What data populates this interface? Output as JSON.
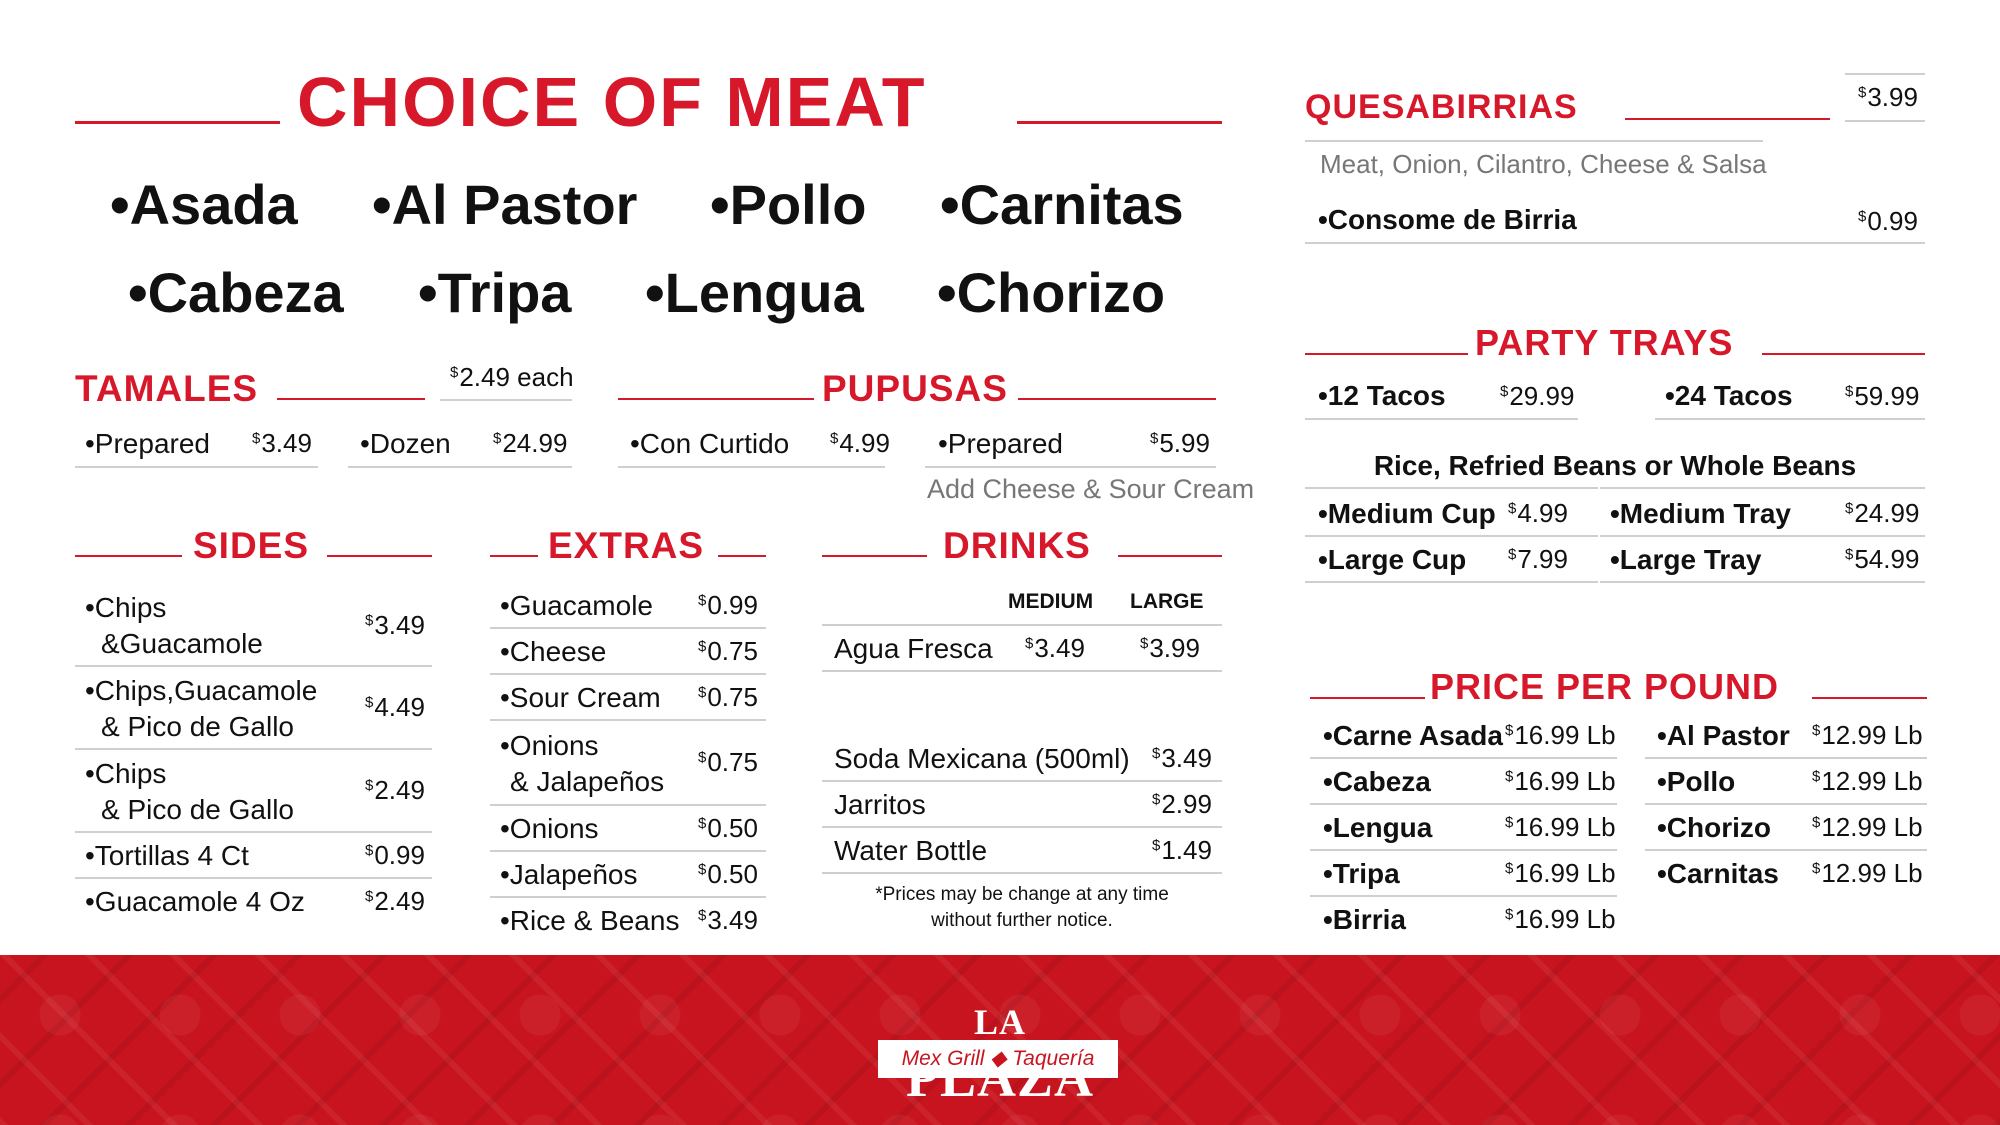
{
  "choice_of_meat": {
    "title": "CHOICE OF MEAT",
    "row1": [
      "•Asada",
      "•Al Pastor",
      "•Pollo",
      "•Carnitas"
    ],
    "row2": [
      "•Cabeza",
      "•Tripa",
      "•Lengua",
      "•Chorizo"
    ]
  },
  "tamales": {
    "title": "TAMALES",
    "each_price": "2.49 each",
    "items": [
      {
        "name": "•Prepared",
        "price": "3.49"
      },
      {
        "name": "•Dozen",
        "price": "24.99"
      }
    ]
  },
  "pupusas": {
    "title": "PUPUSAS",
    "items": [
      {
        "name": "•Con Curtido",
        "price": "4.99"
      },
      {
        "name": "•Prepared",
        "price": "5.99"
      }
    ],
    "note": "Add Cheese & Sour Cream"
  },
  "sides": {
    "title": "SIDES",
    "items": [
      {
        "line1": "•Chips",
        "line2": "&Guacamole",
        "price": "3.49"
      },
      {
        "line1": "•Chips,Guacamole",
        "line2": "& Pico de Gallo",
        "price": "4.49"
      },
      {
        "line1": "•Chips",
        "line2": "& Pico de Gallo",
        "price": "2.49"
      },
      {
        "line1": "•Tortillas 4 Ct",
        "line2": "",
        "price": "0.99"
      },
      {
        "line1": "•Guacamole 4 Oz",
        "line2": "",
        "price": "2.49"
      }
    ]
  },
  "extras": {
    "title": "EXTRAS",
    "items": [
      {
        "line1": "•Guacamole",
        "line2": "",
        "price": "0.99"
      },
      {
        "line1": "•Cheese",
        "line2": "",
        "price": "0.75"
      },
      {
        "line1": "•Sour Cream",
        "line2": "",
        "price": "0.75"
      },
      {
        "line1": "•Onions",
        "line2": "& Jalapeños",
        "price": "0.75"
      },
      {
        "line1": "•Onions",
        "line2": "",
        "price": "0.50"
      },
      {
        "line1": "•Jalapeños",
        "line2": "",
        "price": "0.50"
      },
      {
        "line1": "•Rice & Beans",
        "line2": "",
        "price": "3.49"
      }
    ]
  },
  "drinks": {
    "title": "DRINKS",
    "col_medium": "MEDIUM",
    "col_large": "LARGE",
    "fresca": {
      "name": "Agua Fresca",
      "medium": "3.49",
      "large": "3.99"
    },
    "items": [
      {
        "name": "Soda Mexicana (500ml)",
        "price": "3.49"
      },
      {
        "name": "Jarritos",
        "price": "2.99"
      },
      {
        "name": "Water Bottle",
        "price": "1.49"
      }
    ],
    "note_line1": "*Prices may be change at any time",
    "note_line2": "without further notice."
  },
  "quesabirrias": {
    "title": "QUESABIRRIAS",
    "price": "3.99",
    "description": "Meat, Onion, Cilantro, Cheese & Salsa",
    "consome": {
      "name": "•Consome de Birria",
      "price": "0.99"
    }
  },
  "party_trays": {
    "title": "PARTY TRAYS",
    "tacos": [
      {
        "name": "•12 Tacos",
        "price": "29.99"
      },
      {
        "name": "•24 Tacos",
        "price": "59.99"
      }
    ],
    "subtitle": "Rice, Refried Beans or Whole Beans",
    "sizes": [
      {
        "name": "•Medium Cup",
        "price": "4.99"
      },
      {
        "name": "•Medium Tray",
        "price": "24.99"
      },
      {
        "name": "•Large Cup",
        "price": "7.99"
      },
      {
        "name": "•Large Tray",
        "price": "54.99"
      }
    ]
  },
  "price_per_pound": {
    "title": "PRICE PER POUND",
    "left": [
      {
        "name": "•Carne Asada",
        "price": "16.99 Lb"
      },
      {
        "name": "•Cabeza",
        "price": "16.99 Lb"
      },
      {
        "name": "•Lengua",
        "price": "16.99 Lb"
      },
      {
        "name": "•Tripa",
        "price": "16.99 Lb"
      },
      {
        "name": "•Birria",
        "price": "16.99 Lb"
      }
    ],
    "right": [
      {
        "name": "•Al Pastor",
        "price": "12.99 Lb"
      },
      {
        "name": "•Pollo",
        "price": "12.99 Lb"
      },
      {
        "name": "•Chorizo",
        "price": "12.99 Lb"
      },
      {
        "name": "•Carnitas",
        "price": "12.99 Lb"
      }
    ]
  },
  "logo": {
    "la": "LA",
    "plaza": "PLAZA",
    "sub": "Mex Grill ◆ Taquería"
  },
  "colors": {
    "accent": "#d7182a",
    "banner": "#c8141f"
  }
}
